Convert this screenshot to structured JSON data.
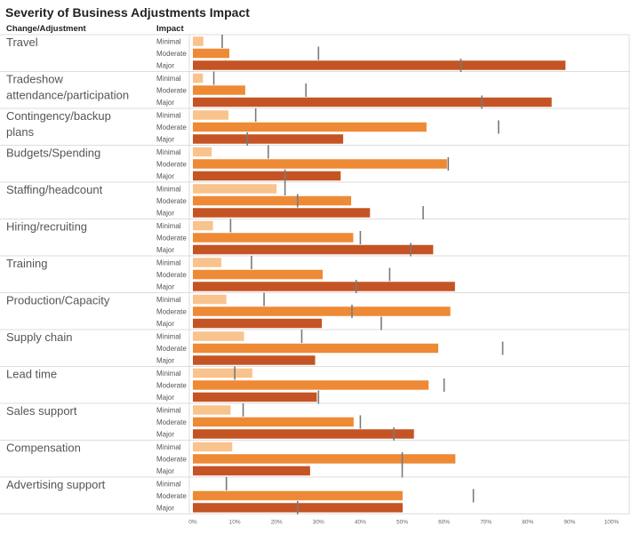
{
  "chart_data": {
    "type": "bar",
    "title": "Severity of Business Adjustments Impact",
    "col_header_category": "Change/Adjustment",
    "col_header_impact": "Impact",
    "impact_levels": [
      "Minimal",
      "Moderate",
      "Major"
    ],
    "xlim": [
      0,
      100
    ],
    "x_ticks": [
      "0%",
      "10%",
      "20%",
      "30%",
      "40%",
      "50%",
      "60%",
      "70%",
      "80%",
      "90%",
      "100%"
    ],
    "colors": {
      "Minimal": "#f9c38d",
      "Moderate": "#ee8a35",
      "Major": "#c55424",
      "reference_tick": "#7a7a7a",
      "grid": "#dddddd"
    },
    "categories": [
      {
        "name": "Travel",
        "values": [
          2.5,
          8.7,
          89.0
        ],
        "reference": [
          7,
          30,
          64
        ]
      },
      {
        "name": "Tradeshow attendance/participation",
        "values": [
          2.4,
          12.5,
          85.7
        ],
        "reference": [
          5,
          27,
          69
        ]
      },
      {
        "name": "Contingency/backup plans",
        "values": [
          8.5,
          55.8,
          35.9
        ],
        "reference": [
          15,
          73,
          13
        ]
      },
      {
        "name": "Budgets/Spending",
        "values": [
          4.5,
          60.7,
          35.3
        ],
        "reference": [
          18,
          61,
          22
        ]
      },
      {
        "name": "Staffing/headcount",
        "values": [
          20.0,
          37.8,
          42.3
        ],
        "reference": [
          22,
          25,
          55
        ]
      },
      {
        "name": "Hiring/recruiting",
        "values": [
          4.8,
          38.3,
          57.4
        ],
        "reference": [
          9,
          40,
          52
        ]
      },
      {
        "name": "Training",
        "values": [
          6.8,
          31.0,
          62.6
        ],
        "reference": [
          14,
          47,
          39
        ]
      },
      {
        "name": "Production/Capacity",
        "values": [
          8.0,
          61.5,
          30.8
        ],
        "reference": [
          17,
          38,
          45
        ]
      },
      {
        "name": "Supply chain",
        "values": [
          12.2,
          58.6,
          29.2
        ],
        "reference": [
          26,
          74,
          0
        ]
      },
      {
        "name": "Lead time",
        "values": [
          14.2,
          56.3,
          29.6
        ],
        "reference": [
          10,
          60,
          30
        ]
      },
      {
        "name": "Sales support",
        "values": [
          9.0,
          38.4,
          52.8
        ],
        "reference": [
          12,
          40,
          48
        ]
      },
      {
        "name": "Compensation",
        "values": [
          9.4,
          62.7,
          28.0
        ],
        "reference": [
          0,
          50,
          50
        ]
      },
      {
        "name": "Advertising support",
        "values": [
          0.0,
          50.1,
          50.1
        ],
        "reference": [
          8,
          67,
          25
        ]
      }
    ]
  }
}
